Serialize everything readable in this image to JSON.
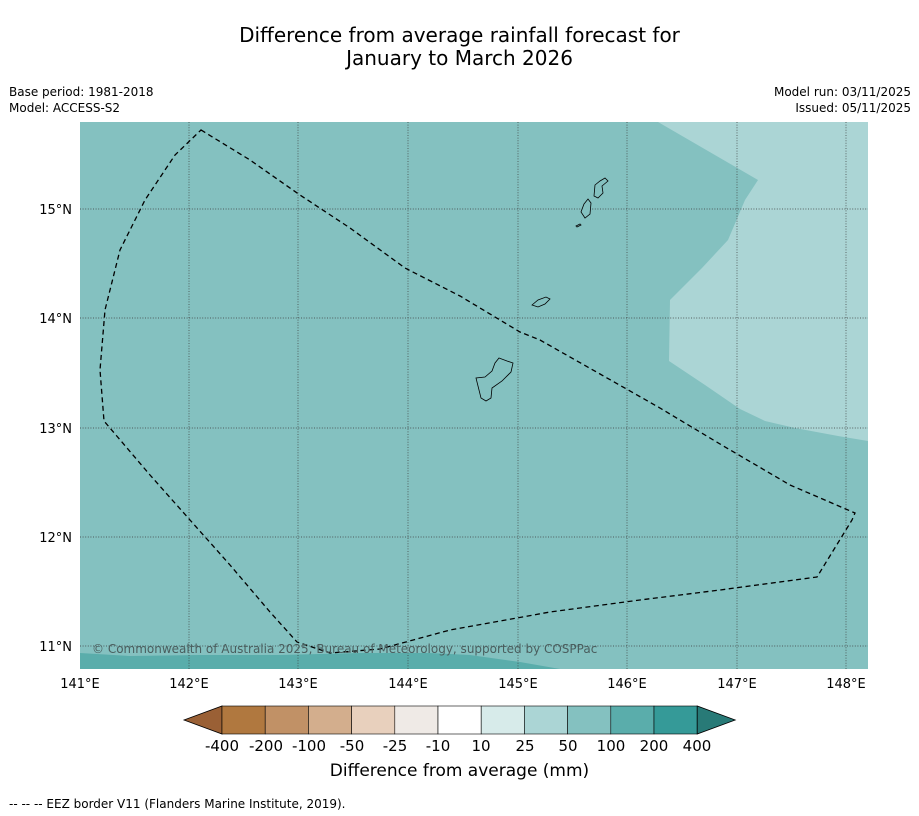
{
  "title": {
    "line1": "Difference from average rainfall forecast for",
    "line2": "January to March 2026"
  },
  "meta_left": {
    "base_period": "Base period: 1981-2018",
    "model": "Model: ACCESS-S2"
  },
  "meta_right": {
    "model_run": "Model run: 03/11/2025",
    "issued": "Issued: 05/11/2025"
  },
  "map": {
    "lon_labels": [
      "141°E",
      "142°E",
      "143°E",
      "144°E",
      "145°E",
      "146°E",
      "147°E",
      "148°E"
    ],
    "lat_labels": [
      "15°N",
      "14°N",
      "13°N",
      "12°N",
      "11°N"
    ],
    "copyright": "© Commonwealth of Australia 2025, Bureau of Meteorology, supported by COSPPac",
    "colors": {
      "base": "#84c1c0",
      "light": "#abd5d5",
      "dark": "#5aadab"
    }
  },
  "legend": {
    "labels": [
      "-400",
      "-200",
      "-100",
      "-50",
      "-25",
      "-10",
      "10",
      "25",
      "50",
      "100",
      "200",
      "400"
    ],
    "colors": [
      "#9a6035",
      "#b0783f",
      "#c19166",
      "#d3ae8d",
      "#e8d0bd",
      "#efeae6",
      "#ffffff",
      "#d7ebea",
      "#abd5d5",
      "#84c1c0",
      "#5aadab",
      "#359a98",
      "#287a77"
    ],
    "title": "Difference from average (mm)"
  },
  "footnote": "--  --  -- EEZ border V11 (Flanders Marine Institute, 2019)."
}
